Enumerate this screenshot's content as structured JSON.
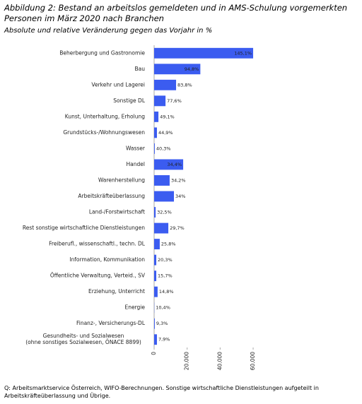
{
  "chart_data": {
    "type": "hbar",
    "title": "Abbildung 2: Bestand an arbeitslos gemeldeten und in AMS-Schulung vorgemerkten Personen im März 2020 nach Branchen",
    "subtitle": "Absolute und relative Veränderung gegen das Vorjahr in %",
    "source": "Q: Arbeitsmarktservice Österreich, WIFO-Berechnungen. Sonstige wirtschaftliche Dienstleistungen aufgeteilt in Arbeitskräfteüberlassung und Übrige.",
    "categories": [
      "Beherbergung und Gastronomie",
      "Bau",
      "Verkehr und Lagerei",
      "Sonstige DL",
      "Kunst, Unterhaltung, Erholung",
      "Grundstücks-/Wohnungswesen",
      "Wasser",
      "Handel",
      "Warenherstellung",
      "Arbeitskräfteüberlassung",
      "Land-/Forstwirtschaft",
      "Rest sonstige wirtschaftliche Dienstleistungen",
      "Freiberufl., wissenschaftl., techn. DL",
      "Information, Kommunikation",
      "Öffentliche Verwaltung, Verteid., SV",
      "Erziehung, Unterricht",
      "Energie",
      "Finanz-, Versicherungs-DL",
      "Gesundheits- und Sozialwesen\n(ohne sonstiges Sozialwesen, ÖNACE 8899)"
    ],
    "values": [
      60000,
      28000,
      13300,
      6900,
      2600,
      1700,
      400,
      17600,
      9400,
      12000,
      900,
      8600,
      3400,
      1300,
      1300,
      2100,
      100,
      400,
      1700
    ],
    "change_labels": [
      "145,1%",
      "94,8%",
      "83,8%",
      "77,6%",
      "49,1%",
      "44,9%",
      "40,3%",
      "34,4%",
      "34,2%",
      "34%",
      "32,5%",
      "29,7%",
      "25,8%",
      "20,3%",
      "15,7%",
      "14,8%",
      "10,4%",
      "9,3%",
      "7,9%"
    ],
    "color": "#3b5cf0",
    "xlim": [
      0,
      62000
    ],
    "xticks": [
      0,
      {
        "value": 20000,
        "label": "20.000"
      },
      {
        "value": 40000,
        "label": "40.000"
      },
      {
        "value": 60000,
        "label": "60.000"
      }
    ]
  }
}
